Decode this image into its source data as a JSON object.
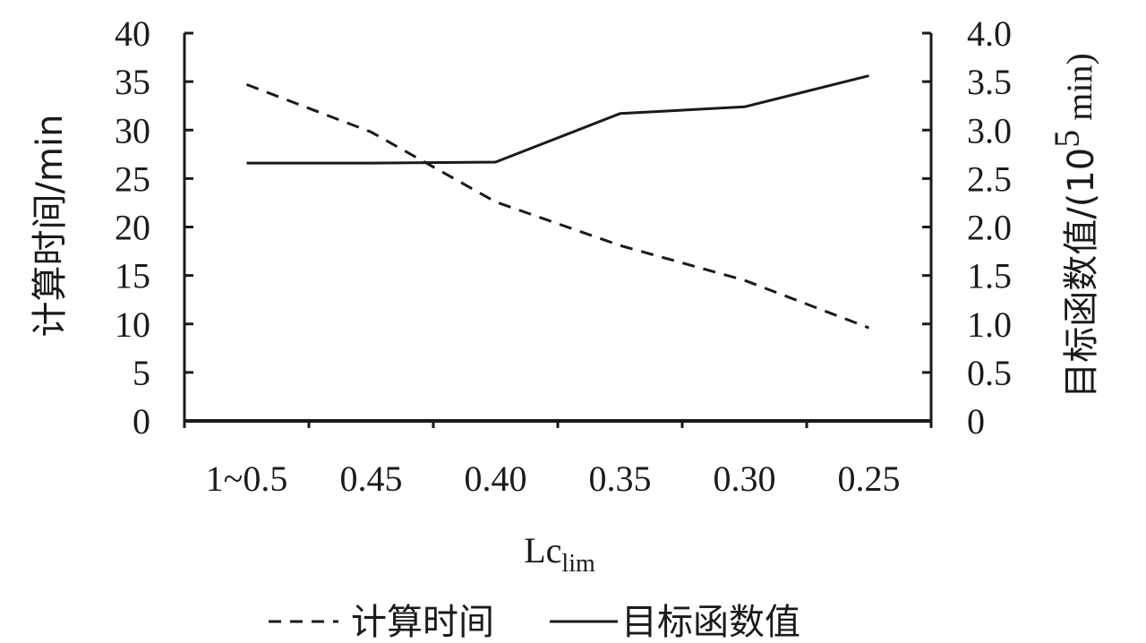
{
  "chart_data": {
    "type": "line",
    "categories": [
      "1~0.5",
      "0.45",
      "0.40",
      "0.35",
      "0.30",
      "0.25"
    ],
    "xlabel": {
      "main": "Lc",
      "sub": "lim"
    },
    "ylabel_left": "计算时间/min",
    "ylabel_right": {
      "prefix": "目标函数值/(10",
      "sup": "5",
      "suffix": " min)"
    },
    "left_axis": {
      "ylim": [
        0,
        40
      ],
      "ticks": [
        0,
        5,
        10,
        15,
        20,
        25,
        30,
        35,
        40
      ],
      "tick_labels": [
        "0",
        "5",
        "10",
        "15",
        "20",
        "25",
        "30",
        "35",
        "40"
      ]
    },
    "right_axis": {
      "ylim": [
        0,
        4
      ],
      "ticks": [
        0,
        0.5,
        1,
        1.5,
        2,
        2.5,
        3,
        3.5,
        4
      ],
      "tick_labels": [
        "0",
        "0.5",
        "1.0",
        "1.5",
        "2.0",
        "2.5",
        "3.0",
        "3.5",
        "4.0"
      ]
    },
    "series": [
      {
        "name": "计算时间",
        "axis": "left",
        "style": "dashed",
        "values": [
          34.7,
          29.8,
          22.6,
          18.1,
          14.5,
          9.6
        ]
      },
      {
        "name": "目标函数值",
        "axis": "right",
        "style": "solid",
        "values": [
          2.66,
          2.66,
          2.67,
          3.17,
          3.24,
          3.56
        ]
      }
    ],
    "grid": false,
    "legend_position": "bottom"
  }
}
